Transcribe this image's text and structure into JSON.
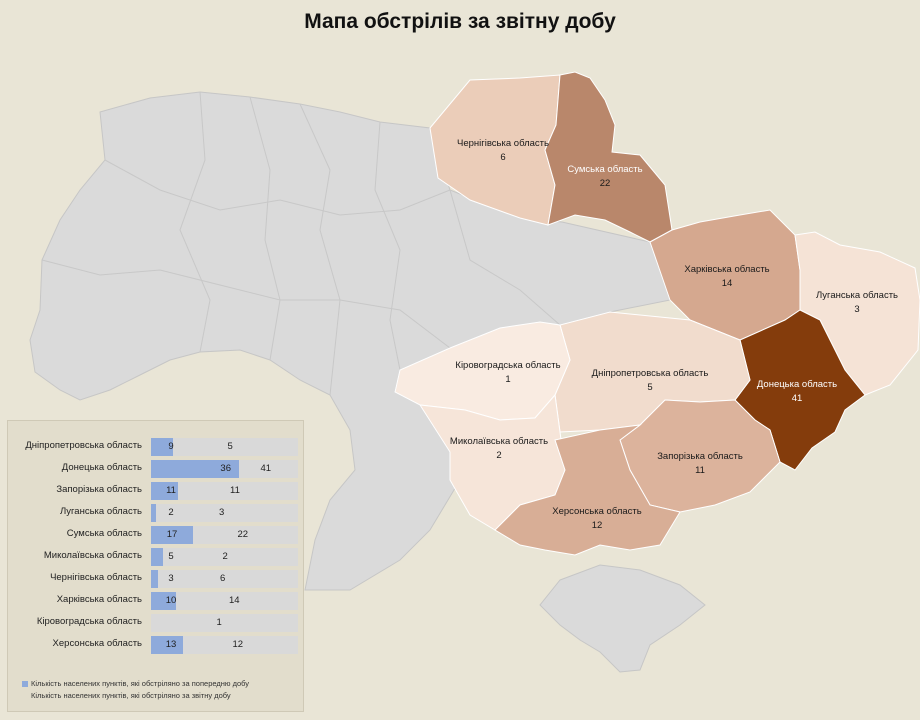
{
  "title": "Мапа обстрілів за звітну добу",
  "regions": [
    {
      "id": "chernihiv",
      "name": "Чернігівська область",
      "value": "6",
      "color": "#ebcdb9"
    },
    {
      "id": "sumy",
      "name": "Сумська область",
      "value": "22",
      "color": "#b9876b"
    },
    {
      "id": "kharkiv",
      "name": "Харківська область",
      "value": "14",
      "color": "#d5a88f"
    },
    {
      "id": "luhansk",
      "name": "Луганська область",
      "value": "3",
      "color": "#f5e3d6"
    },
    {
      "id": "donetsk",
      "name": "Донецька область",
      "value": "41",
      "color": "#843c0c"
    },
    {
      "id": "dnipro",
      "name": "Дніпропетровська область",
      "value": "5",
      "color": "#f1dccd"
    },
    {
      "id": "kirovohrad",
      "name": "Кіровоградська область",
      "value": "1",
      "color": "#f9ebe1"
    },
    {
      "id": "mykolaiv",
      "name": "Миколаївська область",
      "value": "2",
      "color": "#f6e5d9"
    },
    {
      "id": "zaporizhzhia",
      "name": "Запорізька область",
      "value": "11",
      "color": "#dcb39c"
    },
    {
      "id": "kherson",
      "name": "Херсонська область",
      "value": "12",
      "color": "#d8ae96"
    }
  ],
  "chart_data": {
    "type": "bar",
    "categories": [
      "Дніпропетровська область",
      "Донецька область",
      "Запорізька область",
      "Луганська область",
      "Сумська область",
      "Миколаївська область",
      "Чернігівська область",
      "Харківська область",
      "Кіровоградська область",
      "Херсонська область"
    ],
    "series": [
      {
        "name": "Кількість населених пунктів, які обстріляно за попередню добу",
        "values": [
          9,
          36,
          11,
          2,
          17,
          5,
          3,
          10,
          0,
          13
        ],
        "labels": [
          "9",
          "36",
          "11",
          "2",
          "17",
          "5",
          "3",
          "10",
          "",
          "13"
        ],
        "color": "#8eaadb"
      },
      {
        "name": "Кількість населених пунктів, які обстріляно за звітну добу",
        "values": [
          5,
          41,
          11,
          3,
          22,
          2,
          6,
          14,
          1,
          12
        ],
        "labels": [
          "5",
          "41",
          "11",
          "3",
          "22",
          "2",
          "6",
          "14",
          "1",
          "12"
        ],
        "color": "#d9d9d9"
      }
    ]
  }
}
